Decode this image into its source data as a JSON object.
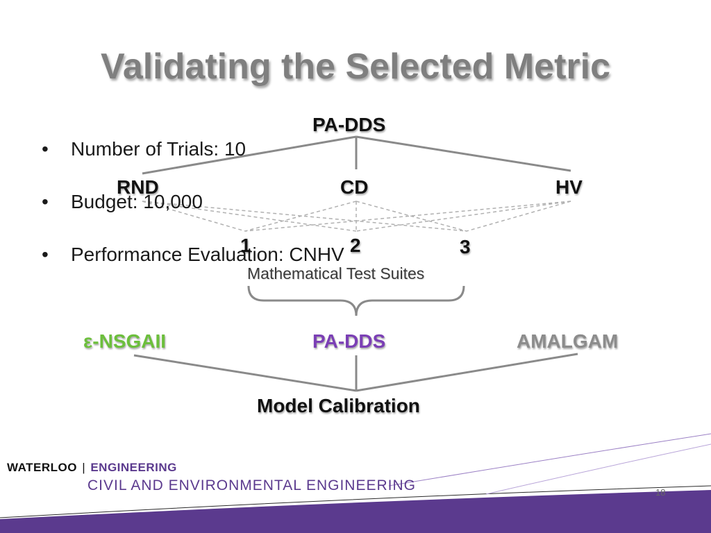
{
  "title": "Validating the Selected Metric",
  "bullets": [
    "Number of Trials: 10",
    "Budget: 10,000",
    "Performance Evaluation: CNHV"
  ],
  "metric_tree": {
    "root": "PA-DDS",
    "metrics": [
      "RND",
      "CD",
      "HV"
    ],
    "suites": [
      "1",
      "2",
      "3"
    ],
    "suites_caption": "Mathematical Test Suites"
  },
  "calibration_tree": {
    "algorithms": [
      {
        "label": "ε-NSGAII",
        "color": "#6cbf3c"
      },
      {
        "label": "PA-DDS",
        "color": "#7b3fb5"
      },
      {
        "label": "AMALGAM",
        "color": "#8c8c8c"
      }
    ],
    "root": "Model Calibration"
  },
  "footer": {
    "waterloo": "WATERLOO",
    "engineering": "ENGINEERING",
    "department": "CIVIL AND ENVIRONMENTAL ENGINEERING",
    "page_number": "18",
    "band_color": "#5b3a8e"
  }
}
